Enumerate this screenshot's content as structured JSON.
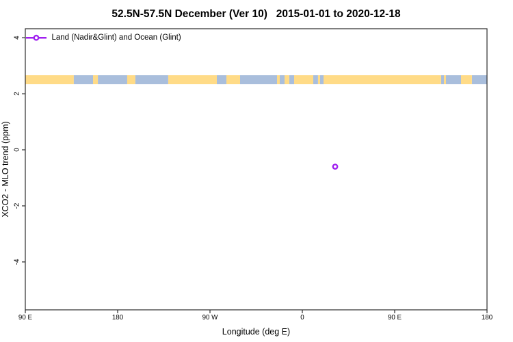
{
  "title": "52.5N-57.5N December (Ver 10)   2015-01-01 to 2020-12-18",
  "chart_data": {
    "type": "scatter",
    "title": "52.5N-57.5N December (Ver 10)   2015-01-01 to 2020-12-18",
    "xlabel": "Longitude (deg E)",
    "ylabel": "XCO2 - MLO trend (ppm)",
    "grid": false,
    "x_axis": {
      "span_deg": 450,
      "tick_positions_deg_from_start": [
        0,
        90,
        180,
        270,
        360,
        450
      ],
      "tick_labels": [
        "90 E",
        "180",
        "90 W",
        "0",
        "90 E",
        "180"
      ],
      "note": "longitude axis starts at 90 E and wraps 450 degrees eastward"
    },
    "y_axis": {
      "tick_values": [
        4,
        2,
        0,
        -2,
        -4
      ],
      "tick_labels": [
        "4",
        "2",
        "0",
        "-2",
        "-4"
      ],
      "ylim": [
        -5.71,
        4.32
      ]
    },
    "legend": {
      "label": "Land (Nadir&Glint) and Ocean (Glint)",
      "marker": "open-circle",
      "color": "#A020F0",
      "position": "top-left"
    },
    "series": [
      {
        "name": "Land (Nadir&Glint) and Ocean (Glint)",
        "points": [
          {
            "lon_deg_e": 32,
            "xco2_minus_mlo_trend_ppm": -0.6
          }
        ]
      }
    ],
    "map_strip": {
      "description": "land/ocean map strip for latitude band 52.5N-57.5N",
      "y_top_ppm": 2.66,
      "y_bottom_ppm": 2.34,
      "land_color": "#FFDB87",
      "ocean_color": "#A9BEDC",
      "segments_deg_from_start": [
        [
          0,
          47.3,
          "land"
        ],
        [
          47.3,
          66,
          "ocean"
        ],
        [
          66,
          70.7,
          "land"
        ],
        [
          70.7,
          99.3,
          "ocean"
        ],
        [
          99.3,
          107.3,
          "land"
        ],
        [
          107.3,
          139.3,
          "ocean"
        ],
        [
          139.3,
          186.7,
          "land"
        ],
        [
          186.7,
          196,
          "ocean"
        ],
        [
          196,
          209.3,
          "land"
        ],
        [
          209.3,
          245.3,
          "ocean"
        ],
        [
          245.3,
          248,
          "land"
        ],
        [
          248,
          252.7,
          "ocean"
        ],
        [
          252.7,
          257.3,
          "land"
        ],
        [
          257.3,
          262,
          "ocean"
        ],
        [
          262,
          280.7,
          "land"
        ],
        [
          280.7,
          285.3,
          "ocean"
        ],
        [
          285.3,
          287.3,
          "land"
        ],
        [
          287.3,
          290.7,
          "ocean"
        ],
        [
          290.7,
          405.3,
          "land"
        ],
        [
          405.3,
          408,
          "ocean"
        ],
        [
          408,
          410,
          "land"
        ],
        [
          410,
          424.7,
          "ocean"
        ],
        [
          424.7,
          435.3,
          "land"
        ],
        [
          435.3,
          450,
          "ocean"
        ]
      ]
    },
    "colors": {
      "marker": "#A020F0",
      "axis": "#2B2B2B",
      "background": "#FFFFFF"
    }
  }
}
